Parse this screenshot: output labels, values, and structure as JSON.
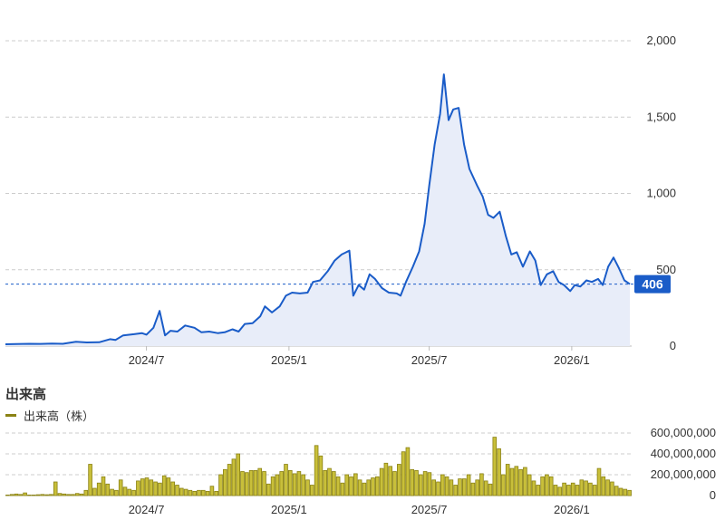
{
  "chart_data": [
    {
      "type": "area",
      "ylim": [
        0,
        2000
      ],
      "yticks": [
        "2,000",
        "1,500",
        "1,000",
        "500",
        "0"
      ],
      "yticks_values": [
        2000,
        1500,
        1000,
        500,
        0
      ],
      "xticks": [
        "2024/7",
        "2025/1",
        "2025/7",
        "2026/1"
      ],
      "xticks_dates": [
        "2024-07-01",
        "2025-01-01",
        "2025-07-01",
        "2026-01-01"
      ],
      "last_value": 406,
      "last_value_label": "406",
      "line_color": "#1a5cc8",
      "fill_color": "#e8edf9",
      "grid": true,
      "points": [
        [
          "2024-01-01",
          12
        ],
        [
          "2024-01-15",
          13
        ],
        [
          "2024-02-01",
          15
        ],
        [
          "2024-02-15",
          14
        ],
        [
          "2024-03-01",
          16
        ],
        [
          "2024-03-15",
          15
        ],
        [
          "2024-04-01",
          28
        ],
        [
          "2024-04-15",
          24
        ],
        [
          "2024-05-01",
          25
        ],
        [
          "2024-05-15",
          45
        ],
        [
          "2024-05-22",
          40
        ],
        [
          "2024-06-01",
          70
        ],
        [
          "2024-06-15",
          78
        ],
        [
          "2024-06-25",
          85
        ],
        [
          "2024-07-01",
          75
        ],
        [
          "2024-07-10",
          120
        ],
        [
          "2024-07-18",
          230
        ],
        [
          "2024-07-25",
          70
        ],
        [
          "2024-08-01",
          100
        ],
        [
          "2024-08-10",
          95
        ],
        [
          "2024-08-20",
          135
        ],
        [
          "2024-09-01",
          120
        ],
        [
          "2024-09-10",
          90
        ],
        [
          "2024-09-20",
          95
        ],
        [
          "2024-10-01",
          85
        ],
        [
          "2024-10-10",
          90
        ],
        [
          "2024-10-20",
          110
        ],
        [
          "2024-10-28",
          95
        ],
        [
          "2024-11-05",
          145
        ],
        [
          "2024-11-15",
          150
        ],
        [
          "2024-11-25",
          195
        ],
        [
          "2024-12-01",
          260
        ],
        [
          "2024-12-10",
          220
        ],
        [
          "2024-12-20",
          260
        ],
        [
          "2024-12-28",
          330
        ],
        [
          "2025-01-05",
          350
        ],
        [
          "2025-01-15",
          345
        ],
        [
          "2025-01-25",
          350
        ],
        [
          "2025-02-01",
          420
        ],
        [
          "2025-02-10",
          430
        ],
        [
          "2025-02-20",
          490
        ],
        [
          "2025-03-01",
          560
        ],
        [
          "2025-03-10",
          600
        ],
        [
          "2025-03-20",
          625
        ],
        [
          "2025-03-25",
          330
        ],
        [
          "2025-04-01",
          400
        ],
        [
          "2025-04-08",
          370
        ],
        [
          "2025-04-15",
          470
        ],
        [
          "2025-04-22",
          440
        ],
        [
          "2025-05-01",
          380
        ],
        [
          "2025-05-10",
          350
        ],
        [
          "2025-05-20",
          345
        ],
        [
          "2025-05-25",
          330
        ],
        [
          "2025-06-01",
          420
        ],
        [
          "2025-06-10",
          520
        ],
        [
          "2025-06-18",
          620
        ],
        [
          "2025-06-25",
          800
        ],
        [
          "2025-07-01",
          1050
        ],
        [
          "2025-07-08",
          1320
        ],
        [
          "2025-07-15",
          1520
        ],
        [
          "2025-07-20",
          1780
        ],
        [
          "2025-07-26",
          1480
        ],
        [
          "2025-08-01",
          1550
        ],
        [
          "2025-08-08",
          1560
        ],
        [
          "2025-08-15",
          1320
        ],
        [
          "2025-08-22",
          1160
        ],
        [
          "2025-09-01",
          1050
        ],
        [
          "2025-09-08",
          980
        ],
        [
          "2025-09-15",
          860
        ],
        [
          "2025-09-22",
          840
        ],
        [
          "2025-09-30",
          880
        ],
        [
          "2025-10-08",
          720
        ],
        [
          "2025-10-15",
          600
        ],
        [
          "2025-10-22",
          615
        ],
        [
          "2025-10-30",
          520
        ],
        [
          "2025-11-08",
          620
        ],
        [
          "2025-11-15",
          560
        ],
        [
          "2025-11-22",
          400
        ],
        [
          "2025-11-30",
          470
        ],
        [
          "2025-12-08",
          490
        ],
        [
          "2025-12-15",
          420
        ],
        [
          "2025-12-22",
          400
        ],
        [
          "2025-12-30",
          360
        ],
        [
          "2026-01-05",
          400
        ],
        [
          "2026-01-12",
          390
        ],
        [
          "2026-01-20",
          430
        ],
        [
          "2026-01-27",
          420
        ],
        [
          "2026-02-04",
          440
        ],
        [
          "2026-02-10",
          400
        ],
        [
          "2026-02-17",
          520
        ],
        [
          "2026-02-24",
          580
        ],
        [
          "2026-03-03",
          510
        ],
        [
          "2026-03-10",
          430
        ],
        [
          "2026-03-17",
          406
        ]
      ]
    },
    {
      "type": "bar",
      "title": "出来高",
      "legend": "出来高（株）",
      "bar_color": "#c8bf3a",
      "bar_border": "#8a8214",
      "ylim": [
        0,
        600000000
      ],
      "yticks": [
        "600,000,000",
        "400,000,000",
        "200,000,000",
        "0"
      ],
      "yticks_values": [
        600000000,
        400000000,
        200000000,
        0
      ],
      "xticks": [
        "2024/7",
        "2025/1",
        "2025/7",
        "2026/1"
      ],
      "xticks_dates": [
        "2024-07-01",
        "2025-01-01",
        "2025-07-01",
        "2026-01-01"
      ],
      "values": [
        5000000,
        10000000,
        15000000,
        10000000,
        25000000,
        5000000,
        5000000,
        8000000,
        10000000,
        8000000,
        10000000,
        130000000,
        20000000,
        15000000,
        10000000,
        10000000,
        20000000,
        15000000,
        50000000,
        300000000,
        70000000,
        120000000,
        180000000,
        110000000,
        60000000,
        50000000,
        150000000,
        80000000,
        60000000,
        50000000,
        140000000,
        160000000,
        170000000,
        150000000,
        130000000,
        120000000,
        190000000,
        170000000,
        130000000,
        100000000,
        70000000,
        60000000,
        50000000,
        40000000,
        50000000,
        50000000,
        40000000,
        90000000,
        40000000,
        200000000,
        250000000,
        300000000,
        350000000,
        400000000,
        230000000,
        220000000,
        240000000,
        240000000,
        260000000,
        230000000,
        110000000,
        180000000,
        200000000,
        230000000,
        300000000,
        240000000,
        210000000,
        230000000,
        200000000,
        150000000,
        100000000,
        480000000,
        380000000,
        240000000,
        260000000,
        230000000,
        180000000,
        120000000,
        200000000,
        180000000,
        210000000,
        150000000,
        120000000,
        150000000,
        170000000,
        180000000,
        260000000,
        310000000,
        280000000,
        230000000,
        300000000,
        420000000,
        460000000,
        250000000,
        240000000,
        200000000,
        230000000,
        220000000,
        150000000,
        130000000,
        200000000,
        180000000,
        150000000,
        100000000,
        160000000,
        160000000,
        200000000,
        120000000,
        150000000,
        210000000,
        140000000,
        110000000,
        560000000,
        450000000,
        200000000,
        300000000,
        260000000,
        280000000,
        250000000,
        270000000,
        200000000,
        140000000,
        100000000,
        180000000,
        200000000,
        180000000,
        100000000,
        80000000,
        120000000,
        100000000,
        120000000,
        100000000,
        150000000,
        140000000,
        120000000,
        100000000,
        260000000,
        180000000,
        150000000,
        130000000,
        90000000,
        70000000,
        60000000,
        50000000
      ]
    }
  ]
}
